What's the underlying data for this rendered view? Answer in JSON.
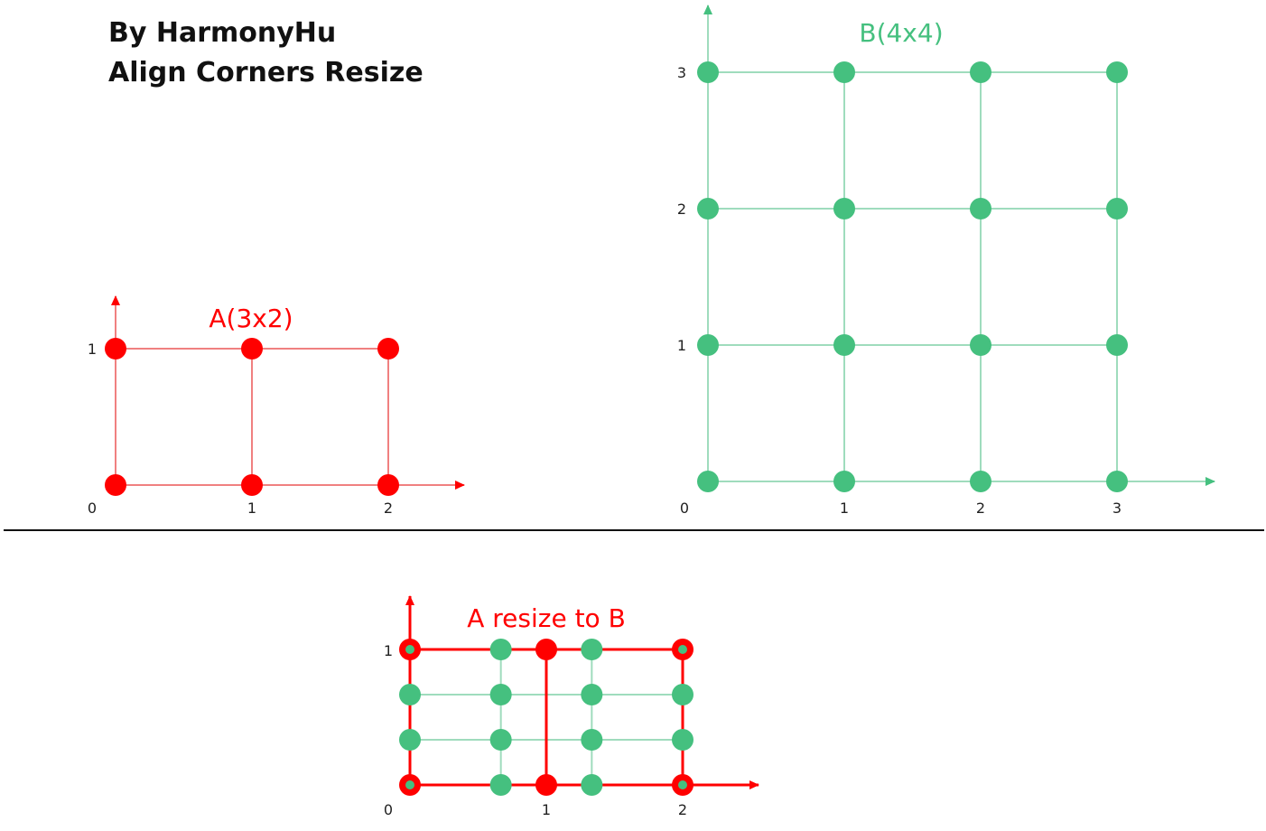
{
  "header": {
    "line1": "By HarmonyHu",
    "line2": "Align Corners Resize"
  },
  "colors": {
    "red": "#ff0000",
    "red_light": "#f08080",
    "green": "#45c07f",
    "green_light": "#9fdcbd",
    "divider": "#111111"
  },
  "grid_a": {
    "label": "A(3x2)",
    "cols": 3,
    "rows": 2,
    "x_ticks": [
      "0",
      "1",
      "2"
    ],
    "y_ticks": [
      "",
      "1"
    ]
  },
  "grid_b": {
    "label": "B(4x4)",
    "cols": 4,
    "rows": 4,
    "x_ticks": [
      "0",
      "1",
      "2",
      "3"
    ],
    "y_ticks": [
      "",
      "1",
      "2",
      "3"
    ]
  },
  "grid_resize": {
    "label": "A resize to B",
    "a_cols": 3,
    "a_rows": 2,
    "b_cols": 4,
    "b_rows": 4,
    "x_ticks": [
      "0",
      "1",
      "2"
    ],
    "y_ticks": [
      "",
      "1"
    ]
  }
}
